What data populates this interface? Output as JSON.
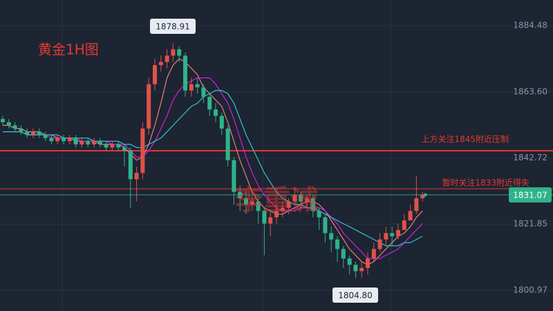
{
  "chart_data": {
    "type": "candlestick",
    "title": "黄金1H图",
    "watermark": "李重诚",
    "up_color": "#e0524a",
    "down_color": "#2fb38a",
    "ylim": [
      1794.43,
      1892.55
    ],
    "yticks": [
      1884.48,
      {
        "value": 1863.6,
        "label": "1863.60"
      },
      1842.72,
      1821.85,
      1800.97
    ],
    "grid": true,
    "open": [
      1855,
      1854,
      1853,
      1852,
      1851,
      1850,
      1851,
      1850,
      1849,
      1848,
      1849,
      1848,
      1849,
      1847,
      1848,
      1847,
      1848,
      1847,
      1846,
      1847,
      1846,
      1845,
      1836,
      1838,
      1852,
      1866,
      1872,
      1873,
      1875,
      1877,
      1875,
      1864,
      1866,
      1865,
      1862,
      1858,
      1856,
      1852,
      1842,
      1832,
      1830,
      1828,
      1829,
      1826,
      1822,
      1824,
      1826,
      1827,
      1829,
      1831,
      1829,
      1830,
      1826,
      1824,
      1819,
      1817,
      1814,
      1811,
      1809,
      1807,
      1808,
      1811,
      1814,
      1817,
      1819,
      1818,
      1820,
      1823,
      1826,
      1830
    ],
    "high": [
      1856,
      1855,
      1854,
      1853,
      1852,
      1852,
      1852,
      1851,
      1850,
      1850,
      1850,
      1850,
      1850,
      1849,
      1849,
      1849,
      1849,
      1848,
      1848,
      1848,
      1847,
      1846,
      1840,
      1854,
      1868,
      1874,
      1875,
      1877,
      1878.91,
      1878,
      1876,
      1868,
      1868,
      1866,
      1863,
      1860,
      1857,
      1853,
      1843,
      1834,
      1832,
      1831,
      1830,
      1827,
      1826,
      1828,
      1829,
      1830,
      1833,
      1832,
      1831,
      1831,
      1827,
      1825,
      1821,
      1818,
      1815,
      1812,
      1810,
      1810,
      1813,
      1816,
      1819,
      1821,
      1821,
      1822,
      1825,
      1828,
      1837,
      1832
    ],
    "low": [
      1853,
      1852,
      1851,
      1850,
      1849,
      1849,
      1849,
      1848,
      1847,
      1847,
      1847,
      1847,
      1846,
      1846,
      1846,
      1846,
      1846,
      1845,
      1845,
      1845,
      1840,
      1827,
      1829,
      1836,
      1850,
      1864,
      1870,
      1871,
      1873,
      1873,
      1862,
      1862,
      1863,
      1860,
      1856,
      1854,
      1850,
      1840,
      1828,
      1826,
      1825,
      1826,
      1822,
      1812,
      1818,
      1822,
      1824,
      1825,
      1828,
      1827,
      1827,
      1824,
      1820,
      1816,
      1813,
      1810,
      1808,
      1806,
      1804.8,
      1805,
      1806,
      1810,
      1813,
      1815,
      1815,
      1817,
      1820,
      1823,
      1825,
      1829
    ],
    "close": [
      1854,
      1853,
      1852,
      1851,
      1850,
      1851,
      1850,
      1849,
      1848,
      1849,
      1848,
      1849,
      1847,
      1848,
      1847,
      1848,
      1847,
      1846,
      1847,
      1846,
      1845,
      1836,
      1838,
      1852,
      1866,
      1872,
      1873,
      1875,
      1877,
      1875,
      1864,
      1866,
      1865,
      1862,
      1858,
      1856,
      1852,
      1842,
      1832,
      1830,
      1828,
      1829,
      1826,
      1822,
      1824,
      1826,
      1827,
      1829,
      1831,
      1829,
      1830,
      1826,
      1824,
      1819,
      1817,
      1814,
      1811,
      1809,
      1807,
      1808,
      1811,
      1814,
      1817,
      1819,
      1818,
      1820,
      1823,
      1826,
      1830,
      1831.07
    ],
    "series": [
      {
        "color": "#e8807a",
        "values": [
          1853,
          1853,
          1852,
          1852,
          1851,
          1851,
          1851,
          1850,
          1850,
          1849,
          1849,
          1849,
          1848,
          1848,
          1848,
          1848,
          1847,
          1847,
          1847,
          1847,
          1846,
          1844,
          1842,
          1843,
          1847,
          1853,
          1860,
          1868,
          1872,
          1874,
          1873,
          1871,
          1869,
          1865,
          1863,
          1861,
          1859,
          1854,
          1848,
          1842,
          1837,
          1832,
          1829,
          1827,
          1826,
          1825,
          1825,
          1826,
          1827,
          1828,
          1829,
          1829,
          1828,
          1826,
          1823,
          1820,
          1817,
          1814,
          1812,
          1810,
          1809,
          1810,
          1812,
          1814,
          1816,
          1818,
          1819,
          1821,
          1824,
          1826
        ]
      },
      {
        "color": "#d020d8",
        "values": [
          1851,
          1851,
          1851,
          1851,
          1850,
          1850,
          1850,
          1850,
          1849,
          1849,
          1849,
          1849,
          1849,
          1848,
          1848,
          1848,
          1848,
          1848,
          1847,
          1847,
          1847,
          1845,
          1843,
          1843,
          1845,
          1848,
          1852,
          1856,
          1861,
          1864,
          1866,
          1867,
          1868,
          1868,
          1868,
          1866,
          1863,
          1860,
          1855,
          1849,
          1843,
          1838,
          1834,
          1831,
          1829,
          1827,
          1826,
          1826,
          1826,
          1827,
          1827,
          1827,
          1827,
          1826,
          1824,
          1822,
          1819,
          1817,
          1815,
          1813,
          1811,
          1811,
          1811,
          1812,
          1813,
          1814,
          1816,
          1818,
          1820,
          1822
        ]
      },
      {
        "color": "#2ec8d8",
        "values": [
          1851,
          1851,
          1851,
          1851,
          1850,
          1850,
          1850,
          1850,
          1850,
          1850,
          1849,
          1849,
          1849,
          1849,
          1849,
          1848,
          1848,
          1848,
          1848,
          1848,
          1847,
          1847,
          1846,
          1846,
          1847,
          1848,
          1849,
          1851,
          1853,
          1855,
          1857,
          1859,
          1860,
          1862,
          1863,
          1864,
          1864,
          1863,
          1860,
          1855,
          1850,
          1846,
          1842,
          1838,
          1835,
          1832,
          1830,
          1829,
          1828,
          1828,
          1827,
          1827,
          1826,
          1825,
          1824,
          1823,
          1822,
          1821,
          1820,
          1819,
          1818,
          1817,
          1816,
          1815,
          1815,
          1815,
          1816,
          1816,
          1817,
          1818
        ]
      }
    ],
    "levels": [
      {
        "value": 1845,
        "label": "上方关注1845附近压制",
        "color": "#e53935"
      },
      {
        "value": 1833,
        "label": "暂时关注1833附近得失",
        "color": "#e53935"
      }
    ],
    "price_labels": [
      {
        "value": 1878.91,
        "label": "1878.91"
      },
      {
        "value": 1804.8,
        "label": "1804.80"
      },
      {
        "value": 1831.07,
        "label": "1831.07"
      }
    ]
  }
}
